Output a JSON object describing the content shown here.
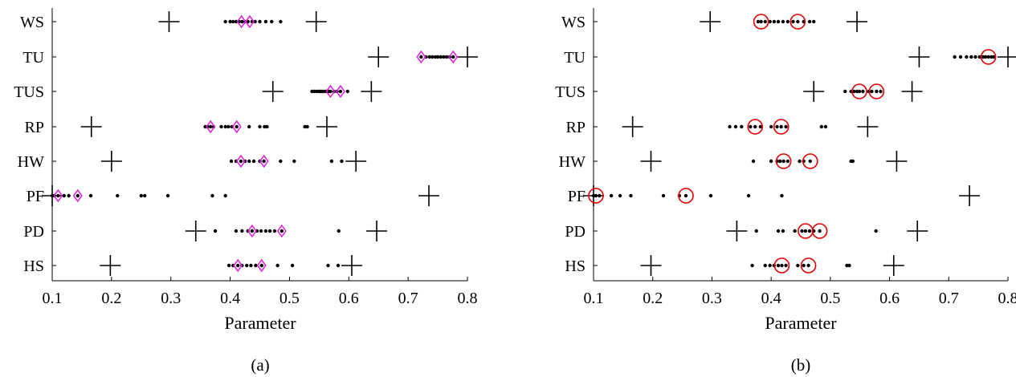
{
  "chart_data": [
    {
      "type": "scatter",
      "panel_label": "(a)",
      "xlabel": "Parameter",
      "xlim": [
        0.1,
        0.8
      ],
      "xticks": [
        "0.1",
        "0.2",
        "0.3",
        "0.4",
        "0.5",
        "0.6",
        "0.7",
        "0.8"
      ],
      "categories": [
        "WS",
        "TU",
        "TUS",
        "RP",
        "HW",
        "PF",
        "PD",
        "HS"
      ],
      "marker_color": "#e020e0",
      "marker_shape": "diamond",
      "rows": [
        {
          "label": "WS",
          "bounds": [
            0.297,
            0.545
          ],
          "highlights": [
            0.419,
            0.433
          ],
          "dots": [
            0.392,
            0.4,
            0.405,
            0.41,
            0.415,
            0.42,
            0.425,
            0.43,
            0.437,
            0.442,
            0.45,
            0.46,
            0.47,
            0.485
          ]
        },
        {
          "label": "TU",
          "bounds": [
            0.65,
            0.8
          ],
          "highlights": [
            0.722,
            0.776
          ],
          "dots": [
            0.722,
            0.73,
            0.736,
            0.741,
            0.746,
            0.75,
            0.755,
            0.76,
            0.765,
            0.77,
            0.776
          ]
        },
        {
          "label": "TUS",
          "bounds": [
            0.472,
            0.638
          ],
          "highlights": [
            0.569,
            0.586
          ],
          "dots": [
            0.538,
            0.542,
            0.546,
            0.55,
            0.553,
            0.556,
            0.56,
            0.563,
            0.566,
            0.569,
            0.575,
            0.58,
            0.586,
            0.598
          ]
        },
        {
          "label": "RP",
          "bounds": [
            0.166,
            0.563
          ],
          "highlights": [
            0.367,
            0.411
          ],
          "dots": [
            0.358,
            0.362,
            0.367,
            0.372,
            0.385,
            0.392,
            0.397,
            0.403,
            0.411,
            0.432,
            0.45,
            0.458,
            0.462,
            0.526,
            0.53
          ]
        },
        {
          "label": "HW",
          "bounds": [
            0.2,
            0.612
          ],
          "highlights": [
            0.418,
            0.457
          ],
          "dots": [
            0.402,
            0.41,
            0.418,
            0.425,
            0.432,
            0.44,
            0.45,
            0.457,
            0.485,
            0.508,
            0.571,
            0.588
          ]
        },
        {
          "label": "PF",
          "bounds": [
            0.1,
            0.735
          ],
          "highlights": [
            0.11,
            0.143
          ],
          "dots": [
            0.1,
            0.103,
            0.11,
            0.12,
            0.128,
            0.143,
            0.165,
            0.21,
            0.25,
            0.256,
            0.295,
            0.37,
            0.392
          ]
        },
        {
          "label": "PD",
          "bounds": [
            0.342,
            0.647
          ],
          "highlights": [
            0.437,
            0.487
          ],
          "dots": [
            0.375,
            0.41,
            0.42,
            0.43,
            0.437,
            0.445,
            0.452,
            0.46,
            0.467,
            0.475,
            0.487,
            0.583
          ]
        },
        {
          "label": "HS",
          "bounds": [
            0.198,
            0.605
          ],
          "highlights": [
            0.413,
            0.453
          ],
          "dots": [
            0.398,
            0.405,
            0.413,
            0.42,
            0.428,
            0.435,
            0.443,
            0.453,
            0.48,
            0.505,
            0.565,
            0.582
          ]
        }
      ]
    },
    {
      "type": "scatter",
      "panel_label": "(b)",
      "xlabel": "Parameter",
      "xlim": [
        0.1,
        0.8
      ],
      "xticks": [
        "0.1",
        "0.2",
        "0.3",
        "0.4",
        "0.5",
        "0.6",
        "0.7",
        "0.8"
      ],
      "categories": [
        "WS",
        "TU",
        "TUS",
        "RP",
        "HW",
        "PF",
        "PD",
        "HS"
      ],
      "marker_color": "#e00000",
      "marker_shape": "circle",
      "rows": [
        {
          "label": "WS",
          "bounds": [
            0.297,
            0.545
          ],
          "highlights": [
            0.383,
            0.445
          ],
          "dots": [
            0.378,
            0.383,
            0.39,
            0.398,
            0.405,
            0.412,
            0.42,
            0.428,
            0.437,
            0.445,
            0.455,
            0.465,
            0.472
          ]
        },
        {
          "label": "TU",
          "bounds": [
            0.65,
            0.8
          ],
          "highlights": [
            0.767
          ],
          "dots": [
            0.71,
            0.72,
            0.73,
            0.738,
            0.745,
            0.752,
            0.758,
            0.762,
            0.767,
            0.772,
            0.776
          ]
        },
        {
          "label": "TUS",
          "bounds": [
            0.472,
            0.638
          ],
          "highlights": [
            0.549,
            0.578
          ],
          "dots": [
            0.525,
            0.535,
            0.54,
            0.545,
            0.549,
            0.555,
            0.565,
            0.57,
            0.578,
            0.585
          ]
        },
        {
          "label": "RP",
          "bounds": [
            0.166,
            0.563
          ],
          "highlights": [
            0.373,
            0.417
          ],
          "dots": [
            0.33,
            0.34,
            0.35,
            0.365,
            0.373,
            0.382,
            0.4,
            0.41,
            0.417,
            0.425,
            0.485,
            0.492
          ]
        },
        {
          "label": "HW",
          "bounds": [
            0.197,
            0.612
          ],
          "highlights": [
            0.421,
            0.466
          ],
          "dots": [
            0.37,
            0.4,
            0.41,
            0.415,
            0.421,
            0.428,
            0.448,
            0.455,
            0.466,
            0.535,
            0.538
          ]
        },
        {
          "label": "PF",
          "bounds": [
            0.1,
            0.735
          ],
          "highlights": [
            0.104,
            0.256
          ],
          "dots": [
            0.1,
            0.104,
            0.11,
            0.13,
            0.145,
            0.163,
            0.218,
            0.245,
            0.256,
            0.298,
            0.362,
            0.418
          ]
        },
        {
          "label": "PD",
          "bounds": [
            0.342,
            0.647
          ],
          "highlights": [
            0.458,
            0.482
          ],
          "dots": [
            0.375,
            0.412,
            0.42,
            0.44,
            0.452,
            0.458,
            0.465,
            0.472,
            0.482,
            0.577
          ]
        },
        {
          "label": "HS",
          "bounds": [
            0.197,
            0.607
          ],
          "highlights": [
            0.418,
            0.463
          ],
          "dots": [
            0.368,
            0.39,
            0.398,
            0.405,
            0.412,
            0.418,
            0.425,
            0.445,
            0.455,
            0.463,
            0.528,
            0.532
          ]
        }
      ]
    }
  ]
}
